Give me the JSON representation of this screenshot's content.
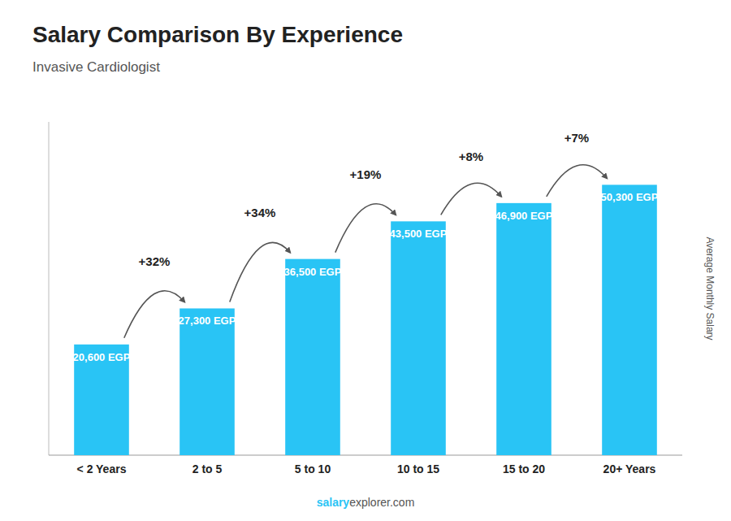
{
  "chart_data": {
    "type": "bar",
    "title": "Salary Comparison By Experience",
    "subtitle": "Invasive Cardiologist",
    "ylabel": "Average Monthly Salary",
    "categories": [
      "< 2 Years",
      "2 to 5",
      "5 to 10",
      "10 to 15",
      "15 to 20",
      "20+ Years"
    ],
    "values": [
      20600,
      27300,
      36500,
      43500,
      46900,
      50300
    ],
    "value_labels": [
      "20,600 EGP",
      "27,300 EGP",
      "36,500 EGP",
      "43,500 EGP",
      "46,900 EGP",
      "50,300 EGP"
    ],
    "data_labels": true,
    "annotations": [
      "+32%",
      "+34%",
      "+19%",
      "+8%",
      "+7%"
    ],
    "footer": [
      "salary",
      "explorer.com"
    ],
    "color": "#29c4f5",
    "ylim": [
      0,
      62000
    ],
    "tick_labels": "x",
    "grid": false
  }
}
